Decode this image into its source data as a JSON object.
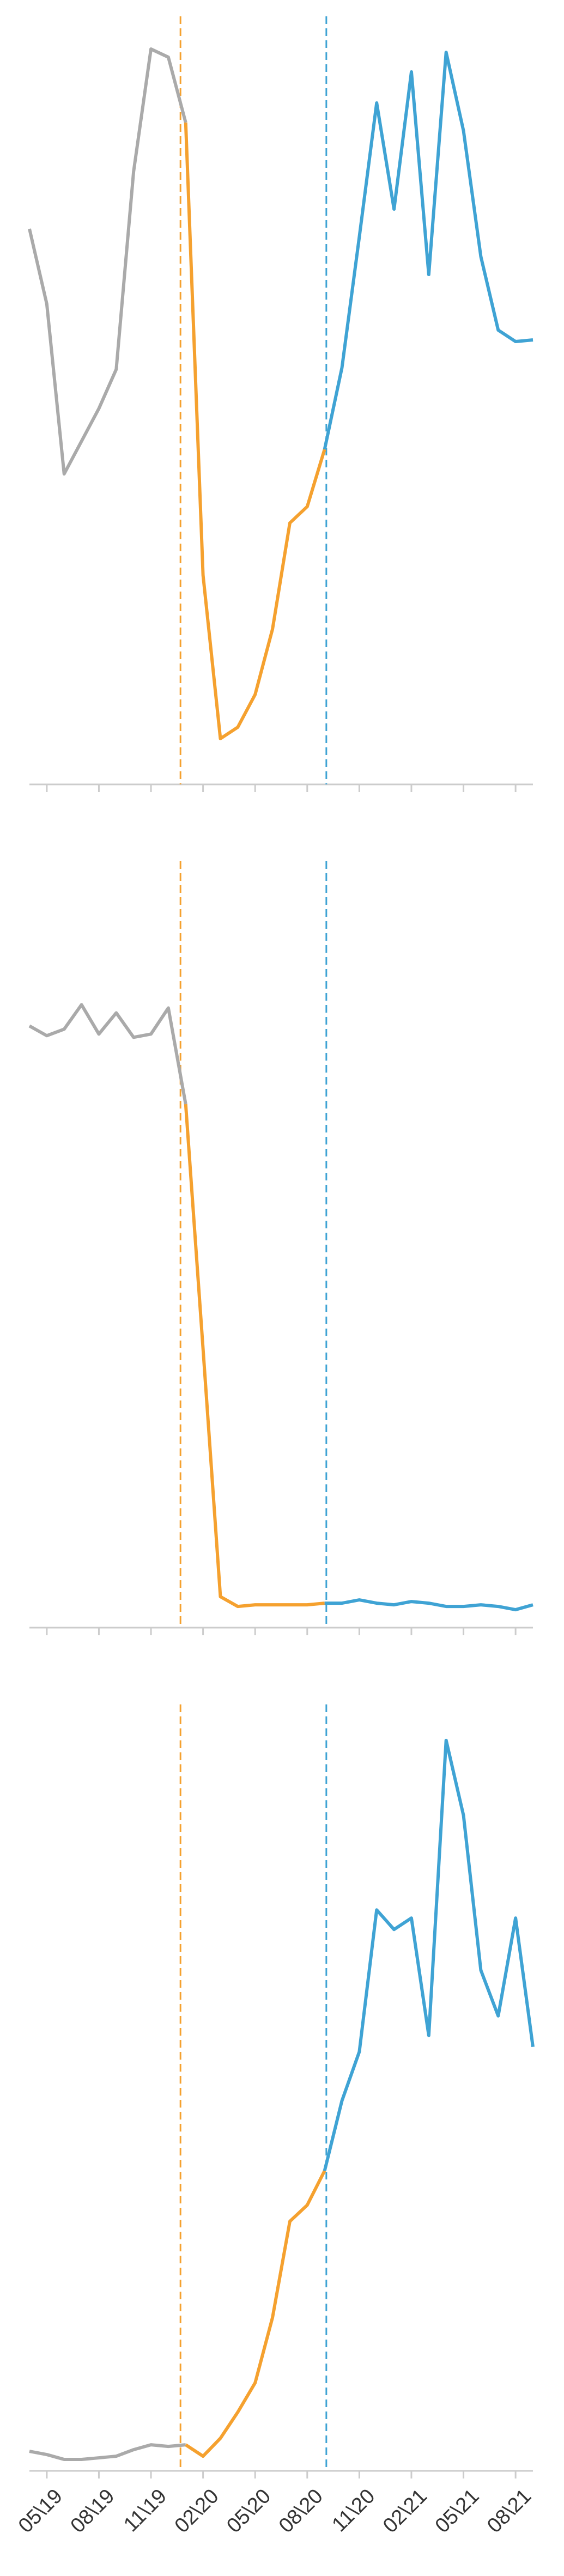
{
  "chart_data": [
    {
      "type": "line",
      "x": [
        0,
        1,
        2,
        3,
        4,
        5,
        6,
        7,
        8,
        9,
        10,
        11,
        12,
        13,
        14,
        15,
        16,
        17,
        18,
        19,
        20,
        21,
        22,
        23,
        24,
        25,
        26,
        27,
        28,
        29
      ],
      "xlim": [
        0,
        29
      ],
      "ylim": [
        0,
        470
      ],
      "xticks": [
        1,
        4,
        7,
        10,
        13,
        16,
        19,
        22,
        25,
        28
      ],
      "vlines": [
        {
          "x": 8.7,
          "color": "#f5a12f"
        },
        {
          "x": 17.1,
          "color": "#3fa3d4"
        }
      ],
      "series": [
        {
          "color": "#aaaaaa",
          "values": [
            340,
            294,
            190,
            210,
            230,
            254,
            375,
            450,
            445,
            405,
            null,
            null,
            null,
            null,
            null,
            null,
            null,
            null,
            null,
            null,
            null,
            null,
            null,
            null,
            null,
            null,
            null,
            null,
            null,
            null
          ]
        },
        {
          "color": "#f5a12f",
          "values": [
            null,
            null,
            null,
            null,
            null,
            null,
            null,
            null,
            null,
            405,
            128,
            28,
            35,
            55,
            95,
            160,
            170,
            205,
            null,
            null,
            null,
            null,
            null,
            null,
            null,
            null,
            null,
            null,
            null,
            null
          ]
        },
        {
          "color": "#3fa3d4",
          "values": [
            null,
            null,
            null,
            null,
            null,
            null,
            null,
            null,
            null,
            null,
            null,
            null,
            null,
            null,
            null,
            null,
            null,
            205,
            255,
            335,
            417,
            352,
            436,
            312,
            448,
            400,
            323,
            278,
            271,
            272
          ]
        }
      ]
    },
    {
      "type": "line",
      "x": [
        0,
        1,
        2,
        3,
        4,
        5,
        6,
        7,
        8,
        9,
        10,
        11,
        12,
        13,
        14,
        15,
        16,
        17,
        18,
        19,
        20,
        21,
        22,
        23,
        24,
        25,
        26,
        27,
        28,
        29
      ],
      "xlim": [
        0,
        29
      ],
      "ylim": [
        0,
        470
      ],
      "xticks": [
        1,
        4,
        7,
        10,
        13,
        16,
        19,
        22,
        25,
        28
      ],
      "vlines": [
        {
          "x": 8.7,
          "color": "#f5a12f"
        },
        {
          "x": 17.1,
          "color": "#3fa3d4"
        }
      ],
      "series": [
        {
          "color": "#aaaaaa",
          "values": [
            369,
            363,
            367,
            382,
            364,
            377,
            362,
            364,
            380,
            321,
            null,
            null,
            null,
            null,
            null,
            null,
            null,
            null,
            null,
            null,
            null,
            null,
            null,
            null,
            null,
            null,
            null,
            null,
            null,
            null
          ]
        },
        {
          "color": "#f5a12f",
          "values": [
            null,
            null,
            null,
            null,
            null,
            null,
            null,
            null,
            null,
            321,
            171,
            19,
            13,
            14,
            14,
            14,
            14,
            15,
            null,
            null,
            null,
            null,
            null,
            null,
            null,
            null,
            null,
            null,
            null,
            null
          ]
        },
        {
          "color": "#3fa3d4",
          "values": [
            null,
            null,
            null,
            null,
            null,
            null,
            null,
            null,
            null,
            null,
            null,
            null,
            null,
            null,
            null,
            null,
            null,
            15,
            15,
            17,
            15,
            14,
            16,
            15,
            13,
            13,
            14,
            13,
            11,
            14
          ]
        }
      ]
    },
    {
      "type": "line",
      "x": [
        0,
        1,
        2,
        3,
        4,
        5,
        6,
        7,
        8,
        9,
        10,
        11,
        12,
        13,
        14,
        15,
        16,
        17,
        18,
        19,
        20,
        21,
        22,
        23,
        24,
        25,
        26,
        27,
        28,
        29
      ],
      "xlim": [
        0,
        29
      ],
      "ylim": [
        0,
        470
      ],
      "xticks": [
        {
          "value": 1,
          "label": "05\\19"
        },
        {
          "value": 4,
          "label": "08\\19"
        },
        {
          "value": 7,
          "label": "11\\19"
        },
        {
          "value": 10,
          "label": "02\\20"
        },
        {
          "value": 13,
          "label": "05\\20"
        },
        {
          "value": 16,
          "label": "08\\20"
        },
        {
          "value": 19,
          "label": "11\\20"
        },
        {
          "value": 22,
          "label": "02\\21"
        },
        {
          "value": 25,
          "label": "05\\21"
        },
        {
          "value": 28,
          "label": "08\\21"
        }
      ],
      "vlines": [
        {
          "x": 8.7,
          "color": "#f5a12f"
        },
        {
          "x": 17.1,
          "color": "#3fa3d4"
        }
      ],
      "series": [
        {
          "color": "#aaaaaa",
          "values": [
            12,
            10,
            7,
            7,
            8,
            9,
            13,
            16,
            15,
            16,
            null,
            null,
            null,
            null,
            null,
            null,
            null,
            null,
            null,
            null,
            null,
            null,
            null,
            null,
            null,
            null,
            null,
            null,
            null,
            null
          ]
        },
        {
          "color": "#f5a12f",
          "values": [
            null,
            null,
            null,
            null,
            null,
            null,
            null,
            null,
            null,
            16,
            9,
            20,
            36,
            54,
            94,
            153,
            163,
            184,
            null,
            null,
            null,
            null,
            null,
            null,
            null,
            null,
            null,
            null,
            null,
            null
          ]
        },
        {
          "color": "#3fa3d4",
          "values": [
            null,
            null,
            null,
            null,
            null,
            null,
            null,
            null,
            null,
            null,
            null,
            null,
            null,
            null,
            null,
            null,
            null,
            184,
            227,
            257,
            344,
            332,
            339,
            267,
            448,
            402,
            307,
            279,
            339,
            260
          ]
        }
      ]
    }
  ]
}
